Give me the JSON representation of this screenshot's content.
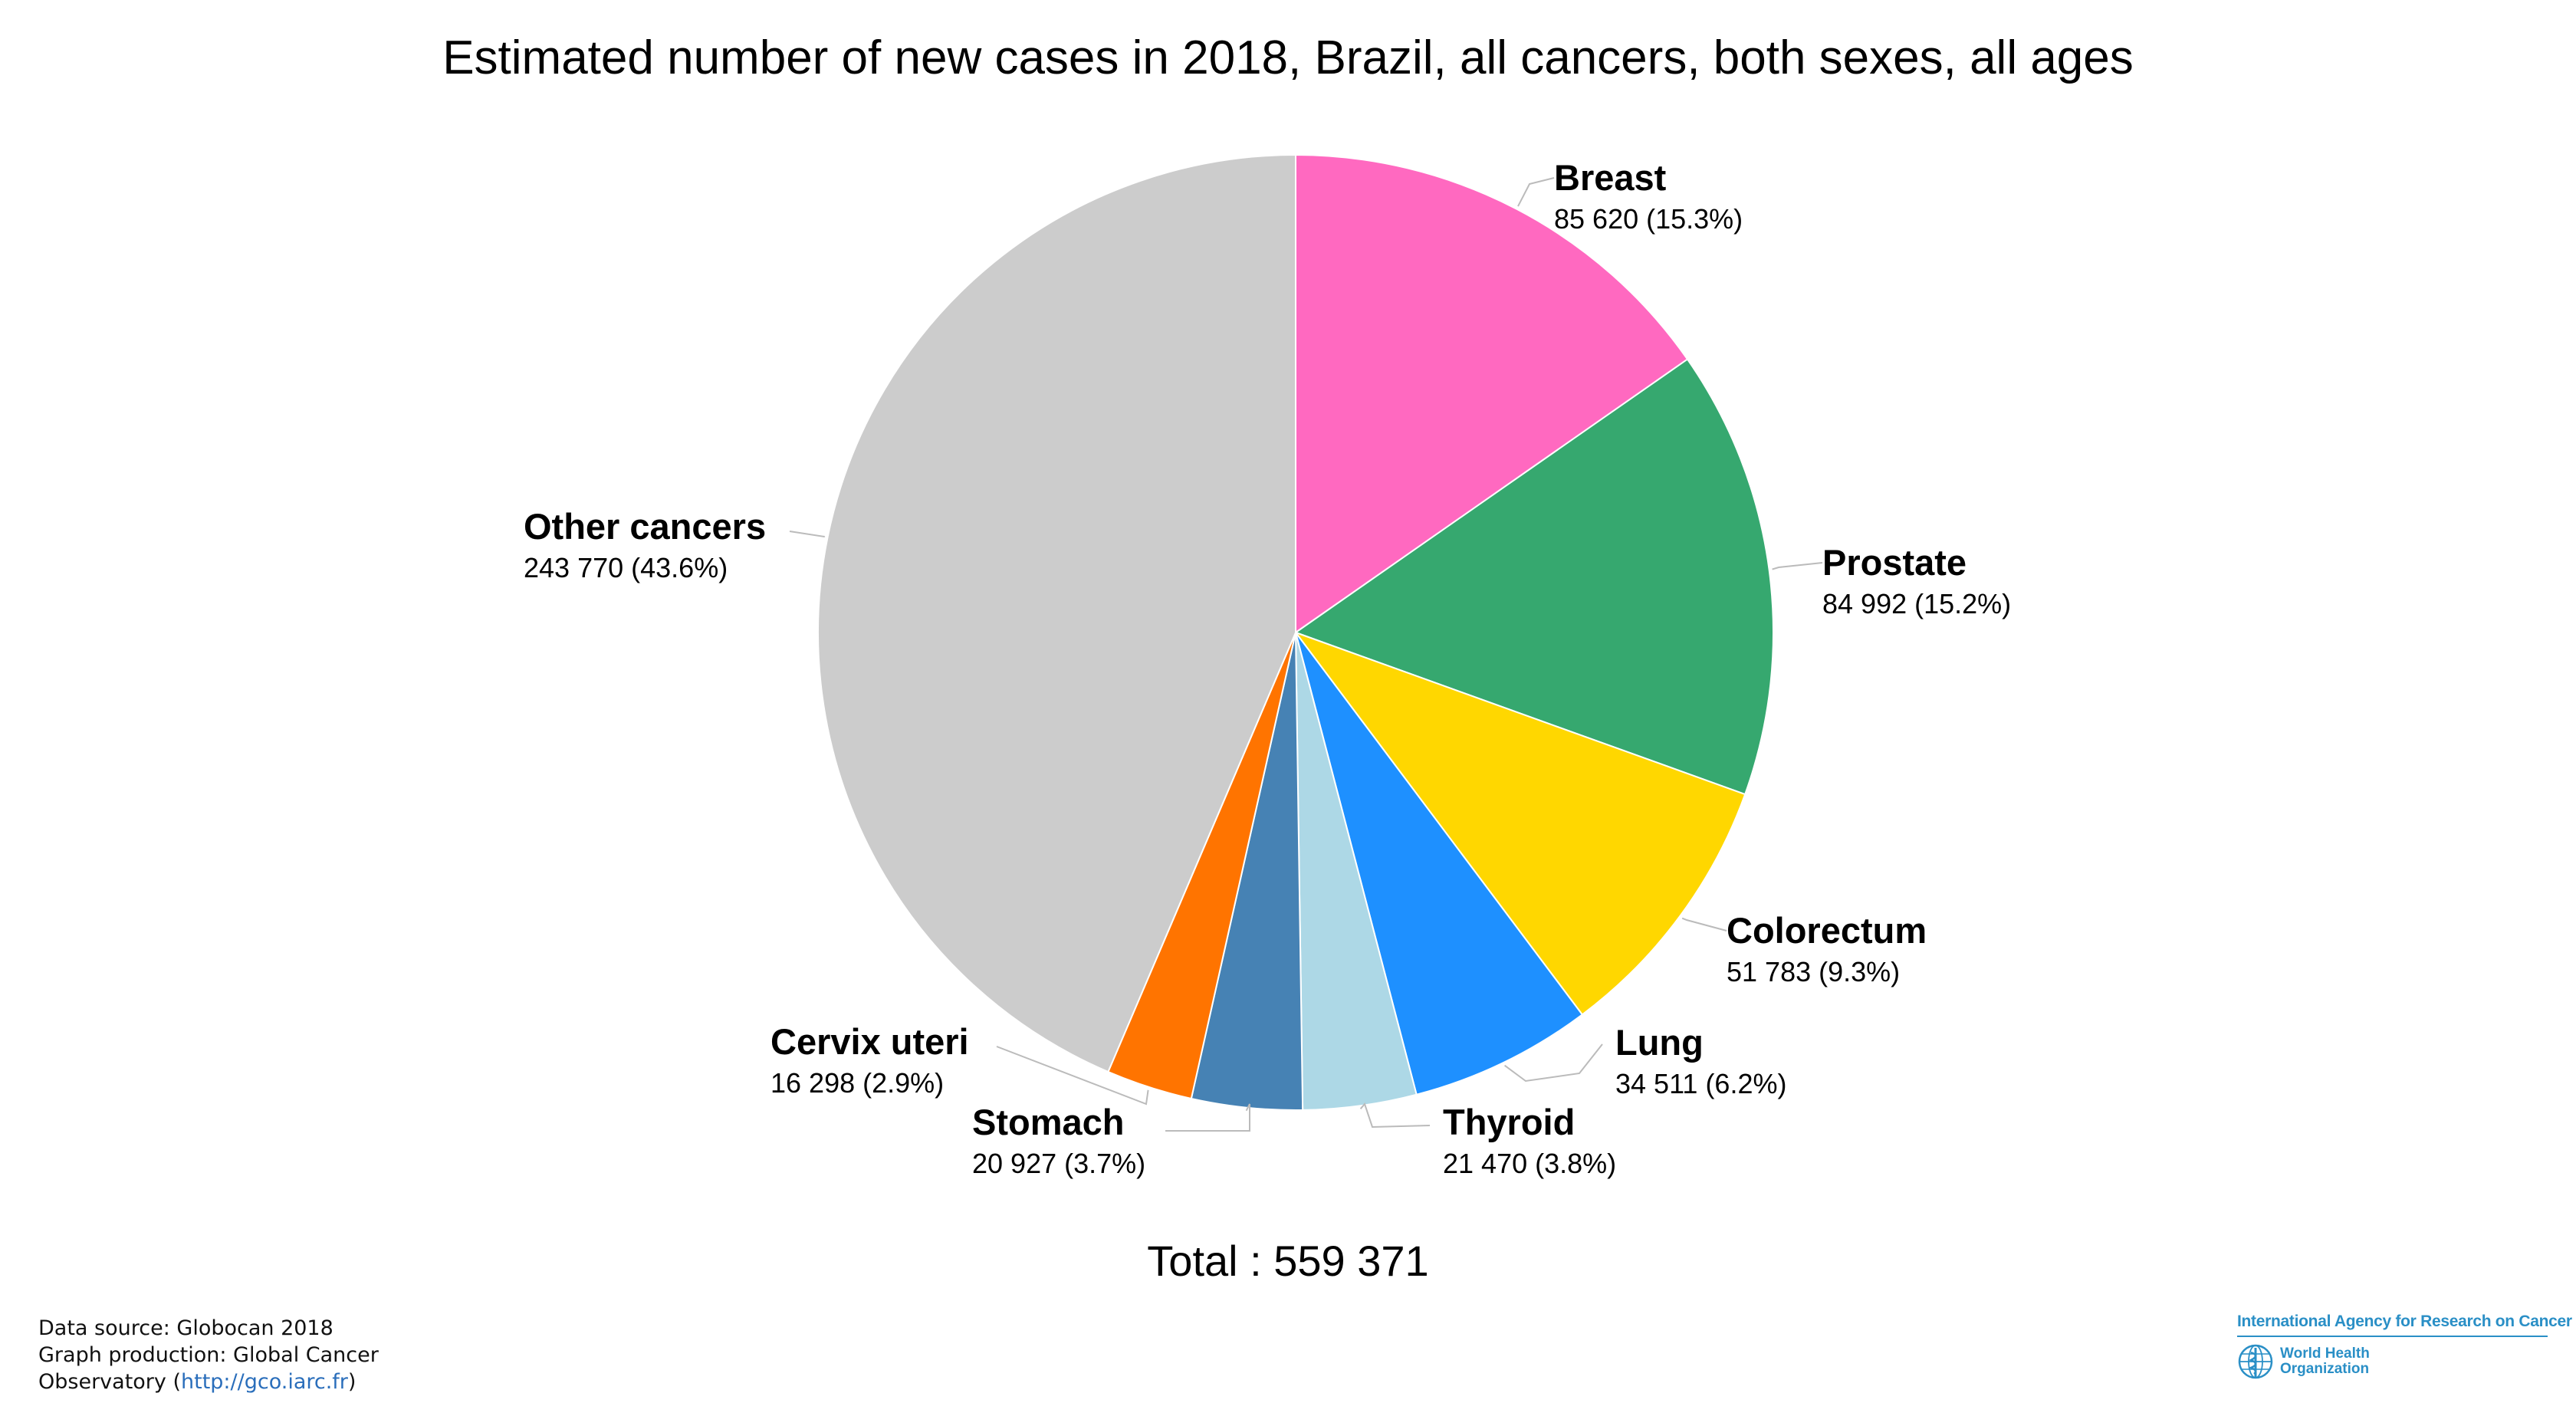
{
  "chart_data": {
    "type": "pie",
    "title": "Estimated number of new cases in 2018, Brazil, all cancers, both sexes, all ages",
    "slices": [
      {
        "name": "Breast",
        "value": 85620,
        "value_label": "85 620 (15.3%)",
        "color": "#ff69c0"
      },
      {
        "name": "Prostate",
        "value": 84992,
        "value_label": "84 992 (15.2%)",
        "color": "#36a86f"
      },
      {
        "name": "Colorectum",
        "value": 51783,
        "value_label": "51 783 (9.3%)",
        "color": "#ffd700"
      },
      {
        "name": "Lung",
        "value": 34511,
        "value_label": "34 511 (6.2%)",
        "color": "#1e90ff"
      },
      {
        "name": "Thyroid",
        "value": 21470,
        "value_label": "21 470 (3.8%)",
        "color": "#add8e6"
      },
      {
        "name": "Stomach",
        "value": 20927,
        "value_label": "20 927 (3.7%)",
        "color": "#4682b4"
      },
      {
        "name": "Cervix uteri",
        "value": 16298,
        "value_label": "16 298 (2.9%)",
        "color": "#ff7400"
      },
      {
        "name": "Other cancers",
        "value": 243770,
        "value_label": "243 770 (43.6%)",
        "color": "#cccccc"
      }
    ],
    "total_label": "Total : 559 371"
  },
  "footer": {
    "line1": "Data source: Globocan 2018",
    "line2": "Graph production: Global Cancer",
    "line3_prefix": "Observatory (",
    "line3_link": "http://gco.iarc.fr",
    "line3_suffix": ")"
  },
  "logos": {
    "agency": "International Agency for Research on Cancer",
    "who_line1": "World Health",
    "who_line2": "Organization",
    "color": "#2a8fc6"
  }
}
